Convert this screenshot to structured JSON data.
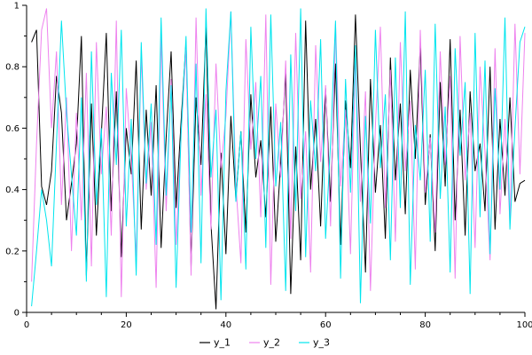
{
  "figure": {
    "background": "#ffffff",
    "axis_color": "#000000",
    "tick_label_color": "#000000",
    "tick_label_font_size": 10,
    "legend_font_size": 11
  },
  "chart_data": {
    "type": "line",
    "title": "",
    "xlabel": "",
    "ylabel": "",
    "xlim": [
      0,
      100
    ],
    "ylim": [
      0,
      1
    ],
    "x_ticks": [
      0,
      20,
      40,
      60,
      80,
      100
    ],
    "x_tick_labels": [
      "0",
      "20",
      "40",
      "60",
      "80",
      "100"
    ],
    "x_minor_step": 5,
    "y_ticks": [
      0,
      0.2,
      0.4,
      0.6,
      0.8,
      1
    ],
    "y_tick_labels": [
      "0",
      "0.2",
      "0.4",
      "0.6",
      "0.8",
      "1"
    ],
    "y_minor_step": 0.1,
    "grid": false,
    "legend_position": "bottom-center",
    "x": [
      1,
      2,
      3,
      4,
      5,
      6,
      7,
      8,
      9,
      10,
      11,
      12,
      13,
      14,
      15,
      16,
      17,
      18,
      19,
      20,
      21,
      22,
      23,
      24,
      25,
      26,
      27,
      28,
      29,
      30,
      31,
      32,
      33,
      34,
      35,
      36,
      37,
      38,
      39,
      40,
      41,
      42,
      43,
      44,
      45,
      46,
      47,
      48,
      49,
      50,
      51,
      52,
      53,
      54,
      55,
      56,
      57,
      58,
      59,
      60,
      61,
      62,
      63,
      64,
      65,
      66,
      67,
      68,
      69,
      70,
      71,
      72,
      73,
      74,
      75,
      76,
      77,
      78,
      79,
      80,
      81,
      82,
      83,
      84,
      85,
      86,
      87,
      88,
      89,
      90,
      91,
      92,
      93,
      94,
      95,
      96,
      97,
      98,
      99,
      100
    ],
    "series": [
      {
        "name": "y_1",
        "color": "#000000",
        "values": [
          0.88,
          0.92,
          0.41,
          0.35,
          0.46,
          0.77,
          0.65,
          0.3,
          0.42,
          0.55,
          0.9,
          0.12,
          0.68,
          0.25,
          0.58,
          0.91,
          0.33,
          0.72,
          0.18,
          0.6,
          0.45,
          0.82,
          0.27,
          0.66,
          0.38,
          0.74,
          0.21,
          0.57,
          0.85,
          0.34,
          0.62,
          0.88,
          0.15,
          0.7,
          0.48,
          0.93,
          0.29,
          0.01,
          0.52,
          0.19,
          0.64,
          0.37,
          0.59,
          0.26,
          0.71,
          0.44,
          0.56,
          0.31,
          0.67,
          0.23,
          0.49,
          0.78,
          0.06,
          0.54,
          0.17,
          0.95,
          0.4,
          0.63,
          0.28,
          0.73,
          0.36,
          0.81,
          0.22,
          0.69,
          0.47,
          0.97,
          0.53,
          0.13,
          0.76,
          0.39,
          0.61,
          0.24,
          0.83,
          0.43,
          0.68,
          0.32,
          0.79,
          0.5,
          0.87,
          0.35,
          0.58,
          0.2,
          0.75,
          0.41,
          0.89,
          0.3,
          0.66,
          0.25,
          0.72,
          0.46,
          0.55,
          0.33,
          0.8,
          0.27,
          0.63,
          0.38,
          0.7,
          0.36,
          0.42,
          0.43
        ]
      },
      {
        "name": "y_2",
        "color": "#ee82ee",
        "values": [
          0.1,
          0.55,
          0.92,
          0.99,
          0.6,
          0.85,
          0.35,
          0.7,
          0.2,
          0.65,
          0.3,
          0.78,
          0.15,
          0.88,
          0.45,
          0.67,
          0.25,
          0.95,
          0.05,
          0.73,
          0.5,
          0.18,
          0.84,
          0.4,
          0.62,
          0.08,
          0.9,
          0.33,
          0.76,
          0.22,
          0.58,
          0.86,
          0.12,
          0.96,
          0.38,
          0.71,
          0.27,
          0.81,
          0.47,
          0.64,
          0.98,
          0.42,
          0.16,
          0.89,
          0.53,
          0.75,
          0.31,
          0.97,
          0.09,
          0.68,
          0.44,
          0.82,
          0.24,
          0.91,
          0.37,
          0.59,
          0.13,
          0.87,
          0.49,
          0.74,
          0.28,
          0.94,
          0.41,
          0.66,
          0.19,
          0.83,
          0.36,
          0.72,
          0.07,
          0.61,
          0.93,
          0.34,
          0.79,
          0.23,
          0.88,
          0.46,
          0.69,
          0.14,
          0.92,
          0.39,
          0.57,
          0.26,
          0.85,
          0.48,
          0.77,
          0.11,
          0.9,
          0.43,
          0.65,
          0.21,
          0.8,
          0.52,
          0.17,
          0.86,
          0.32,
          0.63,
          0.29,
          0.94,
          0.45,
          0.91
        ]
      },
      {
        "name": "y_3",
        "color": "#00e5ee",
        "values": [
          0.02,
          0.2,
          0.4,
          0.3,
          0.15,
          0.55,
          0.95,
          0.65,
          0.45,
          0.25,
          0.7,
          0.1,
          0.85,
          0.35,
          0.6,
          0.05,
          0.78,
          0.48,
          0.92,
          0.28,
          0.63,
          0.12,
          0.88,
          0.42,
          0.68,
          0.22,
          0.96,
          0.38,
          0.74,
          0.08,
          0.58,
          0.9,
          0.26,
          0.81,
          0.16,
          0.99,
          0.44,
          0.66,
          0.04,
          0.72,
          0.98,
          0.36,
          0.59,
          0.14,
          0.93,
          0.5,
          0.77,
          0.21,
          0.97,
          0.41,
          0.62,
          0.07,
          0.84,
          0.33,
          0.99,
          0.18,
          0.69,
          0.46,
          0.89,
          0.24,
          0.55,
          0.95,
          0.11,
          0.76,
          0.39,
          0.87,
          0.03,
          0.64,
          0.29,
          0.92,
          0.47,
          0.71,
          0.17,
          0.83,
          0.34,
          0.98,
          0.09,
          0.61,
          0.43,
          0.79,
          0.23,
          0.94,
          0.37,
          0.67,
          0.13,
          0.86,
          0.51,
          0.75,
          0.06,
          0.91,
          0.31,
          0.82,
          0.19,
          0.73,
          0.4,
          0.96,
          0.27,
          0.6,
          0.88,
          0.93
        ]
      }
    ]
  }
}
